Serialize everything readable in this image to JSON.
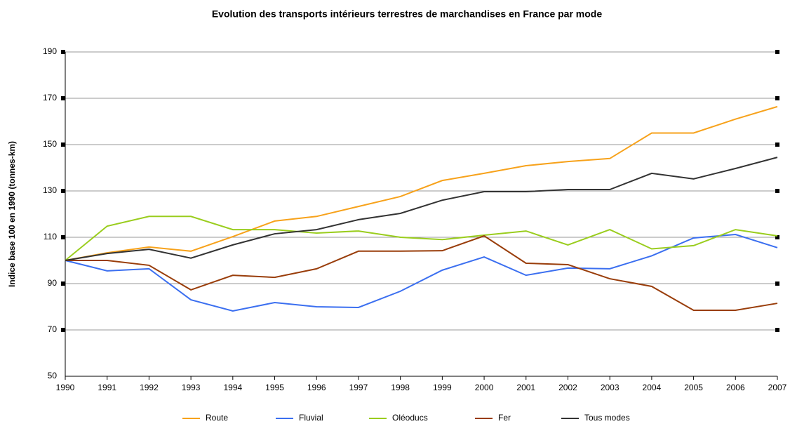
{
  "chart_data": {
    "type": "line",
    "title": "Evolution des transports intérieurs terrestres de marchandises en France par mode",
    "y_label": "Indice base 100 en 1990 (tonnes-km)",
    "categories": [
      "1990",
      "1991",
      "1992",
      "1993",
      "1994",
      "1995",
      "1996",
      "1997",
      "1998",
      "1999",
      "2000",
      "2001",
      "2002",
      "2003",
      "2004",
      "2005",
      "2006",
      "2007"
    ],
    "ylim": [
      50,
      190
    ],
    "yticks": [
      50,
      70,
      90,
      110,
      130,
      150,
      170,
      190
    ],
    "grid": true,
    "legend": "bottom",
    "series": [
      {
        "name": "Route",
        "color": "#f7a21b",
        "values": [
          100,
          103.3,
          105.8,
          104,
          110.3,
          117,
          119,
          123.3,
          127.6,
          134.5,
          137.6,
          140.9,
          142.7,
          144,
          155,
          155,
          161,
          166.4
        ]
      },
      {
        "name": "Fluvial",
        "color": "#3b6ff0",
        "values": [
          100,
          95.5,
          96.4,
          83,
          78.2,
          81.8,
          80,
          79.7,
          86.7,
          95.8,
          101.5,
          93.6,
          96.7,
          96.4,
          102,
          109.7,
          111.2,
          105.5
        ]
      },
      {
        "name": "Oléoducs",
        "color": "#9acd1e",
        "values": [
          100,
          114.8,
          119,
          119,
          113.3,
          113.3,
          111.8,
          112.7,
          110,
          109,
          110.9,
          112.7,
          106.7,
          113.3,
          105,
          106.4,
          113.3,
          110.6
        ]
      },
      {
        "name": "Fer",
        "color": "#993d0a",
        "values": [
          100,
          100,
          97.9,
          87.3,
          93.6,
          92.7,
          96.4,
          104,
          104,
          104.2,
          110.6,
          98.8,
          98.2,
          92.1,
          88.8,
          78.5,
          78.5,
          81.5
        ]
      },
      {
        "name": "Tous modes",
        "color": "#333333",
        "values": [
          100,
          103,
          104.8,
          101,
          106.7,
          111.5,
          113.3,
          117.6,
          120.3,
          126,
          129.7,
          129.7,
          130.6,
          130.6,
          137.6,
          135.2,
          139.7,
          144.5
        ]
      }
    ]
  }
}
